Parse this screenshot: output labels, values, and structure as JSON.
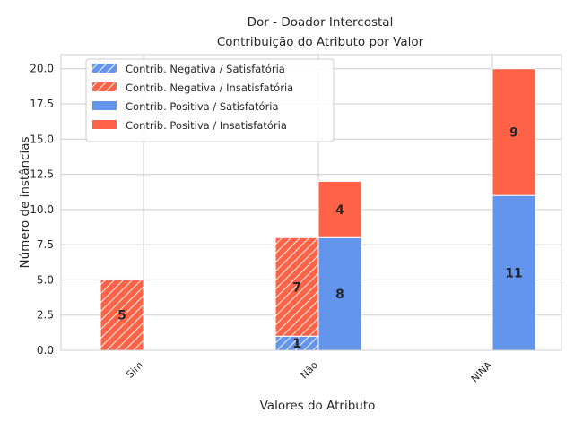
{
  "chart_data": {
    "type": "bar",
    "stacked": true,
    "title": "Dor - Doador Intercostal",
    "subtitle": "Contribuição do Atributo por Valor",
    "xlabel": "Valores do Atributo",
    "ylabel": "Número de instâncias",
    "categories": [
      "Sim",
      "Não",
      "NINA"
    ],
    "ylim": [
      0,
      21
    ],
    "yticks": [
      "0.0",
      "2.5",
      "5.0",
      "7.5",
      "10.0",
      "12.5",
      "15.0",
      "17.5",
      "20.0"
    ],
    "grid": true,
    "legend_position": "top-left",
    "colors": {
      "satisfatoria": "#6495ED",
      "insatisfatoria": "#FF6347"
    },
    "series": [
      {
        "name": "Contrib. Negativa / Satisfatória",
        "group": "negativa",
        "hatch": true,
        "values": [
          0,
          1,
          0
        ]
      },
      {
        "name": "Contrib. Negativa / Insatisfatória",
        "group": "negativa",
        "hatch": true,
        "values": [
          5,
          7,
          0
        ]
      },
      {
        "name": "Contrib. Positiva / Satisfatória",
        "group": "positiva",
        "hatch": false,
        "values": [
          0,
          8,
          11
        ]
      },
      {
        "name": "Contrib. Positiva / Insatisfatória",
        "group": "positiva",
        "hatch": false,
        "values": [
          0,
          4,
          9
        ]
      }
    ]
  }
}
